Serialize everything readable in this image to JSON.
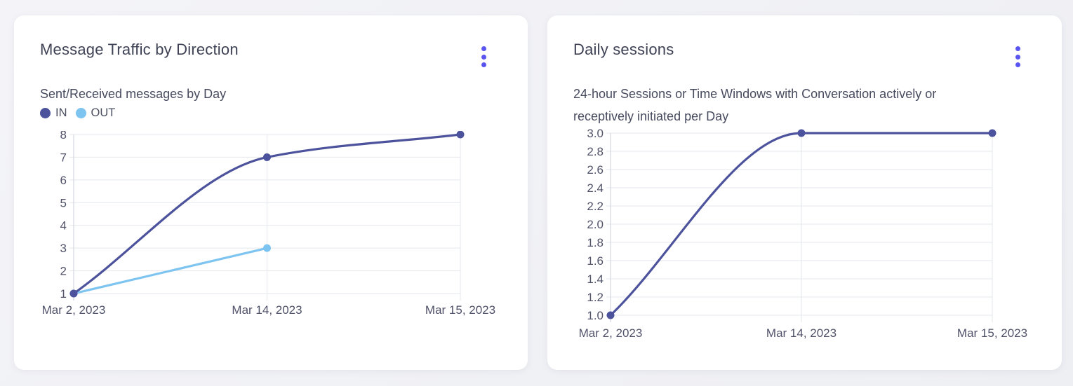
{
  "icons": {
    "card_menu": "kebab-menu-icon",
    "menu_accent_color": "#5A55F0"
  },
  "chart_data": [
    {
      "type": "line",
      "title": "Message Traffic by Direction",
      "subtitle": "Sent/Received messages by Day",
      "categories": [
        "Mar 2, 2023",
        "Mar 14, 2023",
        "Mar 15, 2023"
      ],
      "series": [
        {
          "name": "IN",
          "color": "#4C529B",
          "values": [
            1,
            7,
            8
          ]
        },
        {
          "name": "OUT",
          "color": "#7EC4F0",
          "values": [
            1,
            3,
            null
          ]
        }
      ],
      "ylim": [
        1,
        8
      ],
      "y_ticks": [
        "1",
        "2",
        "3",
        "4",
        "5",
        "6",
        "7",
        "8"
      ],
      "grid": true,
      "legend": true,
      "legend_position": "top-left",
      "curve": "monotone"
    },
    {
      "type": "line",
      "title": "Daily sessions",
      "subtitle": "24-hour Sessions or Time Windows with Conversation actively or receptively initiated per Day",
      "categories": [
        "Mar 2, 2023",
        "Mar 14, 2023",
        "Mar 15, 2023"
      ],
      "series": [
        {
          "name": "Daily sessions",
          "color": "#4C529B",
          "values": [
            1.0,
            3.0,
            3.0
          ]
        }
      ],
      "ylim": [
        1.0,
        3.0
      ],
      "y_ticks": [
        "1.0",
        "1.2",
        "1.4",
        "1.6",
        "1.8",
        "2.0",
        "2.2",
        "2.4",
        "2.6",
        "2.8",
        "3.0"
      ],
      "grid": true,
      "legend": false,
      "curve": "monotone"
    }
  ]
}
